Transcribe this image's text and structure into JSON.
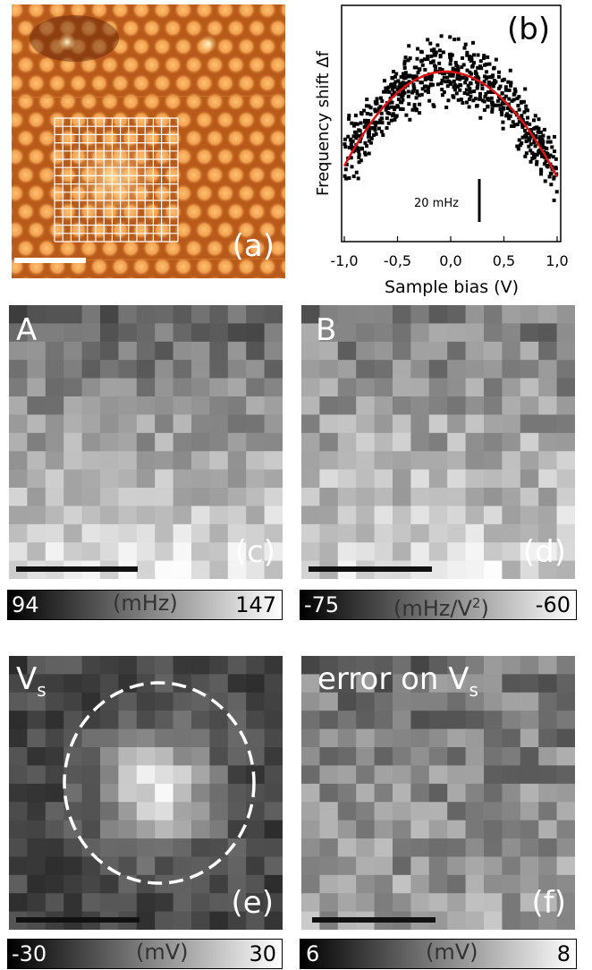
{
  "panel_a": {
    "label": "(a)"
  },
  "panel_b": {
    "label": "(b)",
    "ylabel": "Frequency shift Δf",
    "xlabel": "Sample bias (V)",
    "xticks": [
      "-1,0",
      "-0,5",
      "0,0",
      "0,5",
      "1,0"
    ],
    "scalebar_label": "20 mHz"
  },
  "panel_c": {
    "tag": "A",
    "label": "(c)",
    "cbar_min": "94",
    "cbar_unit": "(mHz)",
    "cbar_max": "147"
  },
  "panel_d": {
    "tag": "B",
    "label": "(d)",
    "cbar_min": "-75",
    "cbar_unit_base": "(mHz/V",
    "cbar_unit_sup": "2",
    "cbar_unit_end": ")",
    "cbar_max": "-60"
  },
  "panel_e": {
    "tag_base": "V",
    "tag_sub": "s",
    "label": "(e)",
    "cbar_min": "-30",
    "cbar_unit": "(mV)",
    "cbar_max": "30"
  },
  "panel_f": {
    "tag_base": "error on V",
    "tag_sub": "s",
    "label": "(f)",
    "cbar_min": "6",
    "cbar_unit": "(mV)",
    "cbar_max": "8"
  },
  "colors": {
    "stm_bg": "#b85a1a",
    "stm_atom": "#f0a050",
    "fit_curve": "#e01010"
  },
  "chart_data": {
    "type": "scatter",
    "xlabel": "Sample bias (V)",
    "ylabel": "Frequency shift Δf",
    "xlim": [
      -1.0,
      1.0
    ],
    "xticks": [
      -1.0,
      -0.5,
      0.0,
      0.5,
      1.0
    ],
    "parabola_fit": {
      "vertex_x": -0.05,
      "vertex_dy_mHz": 0,
      "edge_dy_mHz_at_minus1": -44,
      "edge_dy_mHz_at_plus1": -49
    },
    "scatter_spread_mHz": 10,
    "scalebar_mHz": 20
  }
}
